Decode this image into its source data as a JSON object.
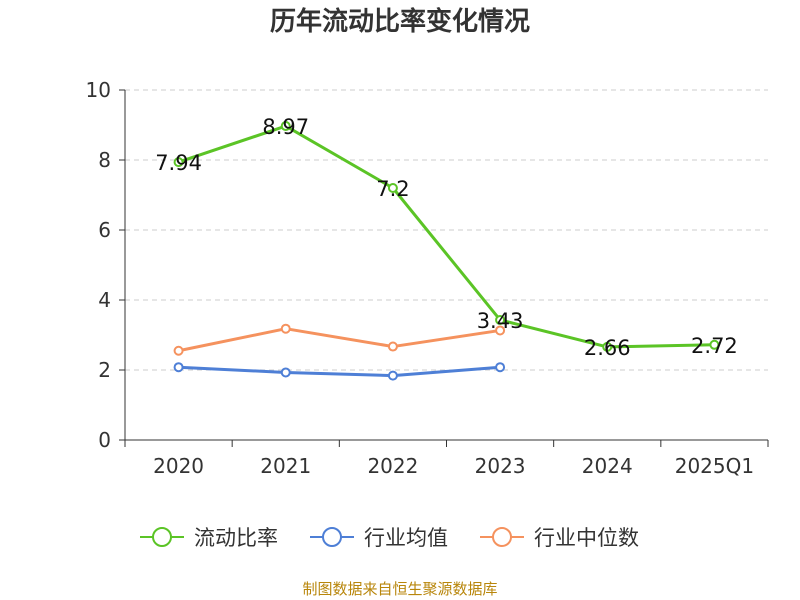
{
  "chart_data": {
    "type": "line",
    "title": "历年流动比率变化情况",
    "categories": [
      "2020",
      "2021",
      "2022",
      "2023",
      "2024",
      "2025Q1"
    ],
    "ylim": [
      0,
      10
    ],
    "yticks": [
      0,
      2,
      4,
      6,
      8,
      10
    ],
    "grid": true,
    "legend_position": "bottom",
    "series": [
      {
        "name": "流动比率",
        "color": "#5bc426",
        "values": [
          7.94,
          8.97,
          7.2,
          3.43,
          2.66,
          2.72
        ],
        "show_labels": true
      },
      {
        "name": "行业均值",
        "color": "#4e7fd6",
        "values": [
          2.08,
          1.93,
          1.84,
          2.08,
          null,
          null
        ],
        "show_labels": false
      },
      {
        "name": "行业中位数",
        "color": "#f5925e",
        "values": [
          2.55,
          3.18,
          2.67,
          3.13,
          null,
          null
        ],
        "show_labels": false
      }
    ],
    "data_labels": [
      "7.94",
      "8.97",
      "7.2",
      "3.43",
      "2.66",
      "2.72"
    ]
  },
  "source_note": "制图数据来自恒生聚源数据库"
}
